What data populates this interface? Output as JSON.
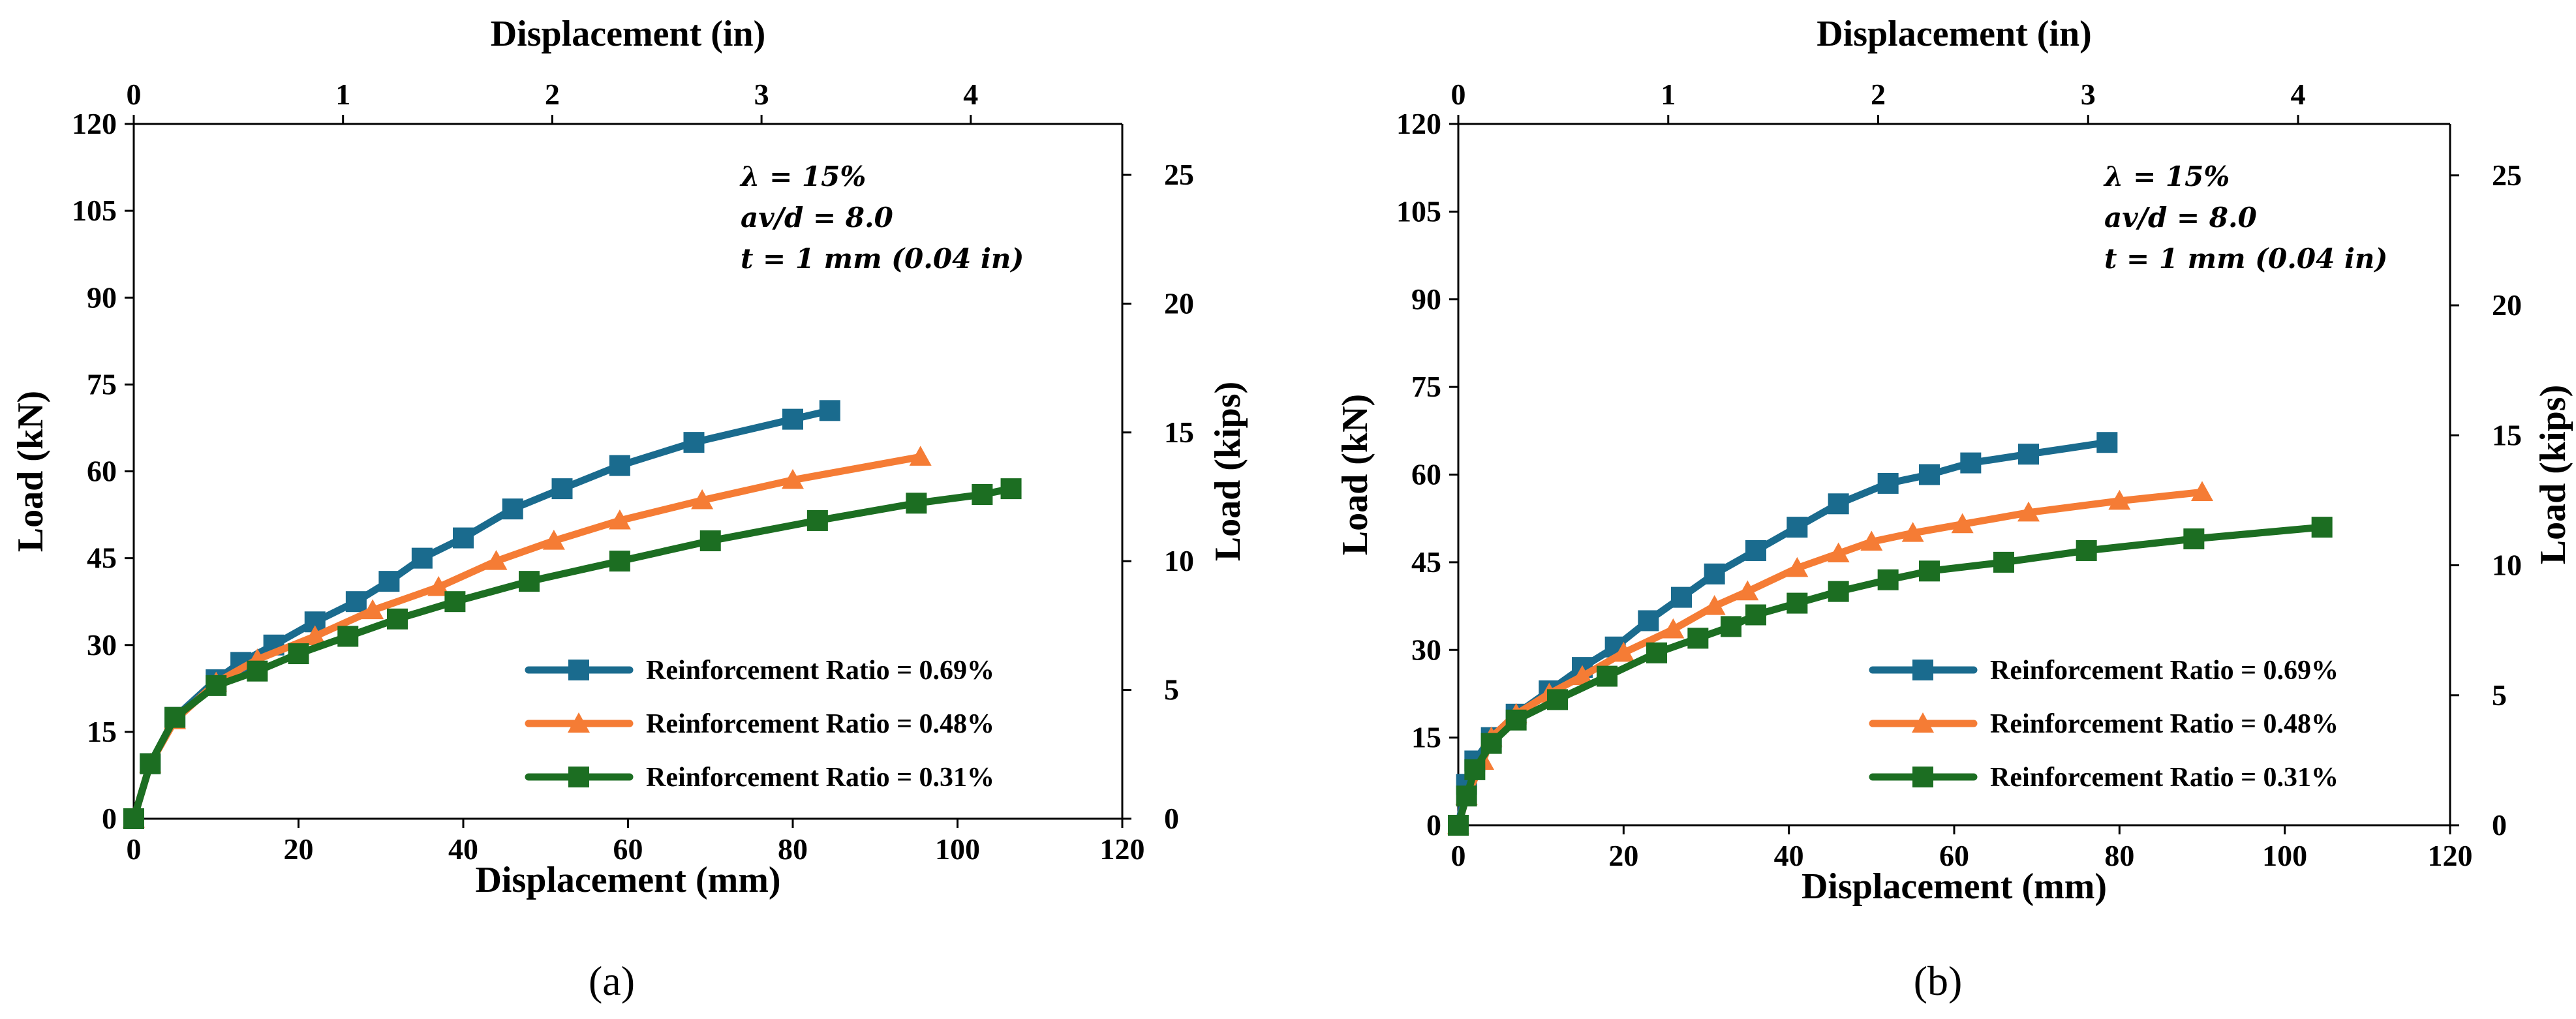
{
  "colors": {
    "blue": "#1a6b8e",
    "orange": "#f57c35",
    "green": "#1c6e22"
  },
  "chart_data": [
    {
      "type": "line",
      "panel_label": "(a)",
      "xlabel": "Displacement (mm)",
      "ylabel": "Load (kN)",
      "x2label": "Displacement (in)",
      "y2label": "Load (kips)",
      "xlim": [
        0,
        120
      ],
      "ylim": [
        0,
        120
      ],
      "x2lim": [
        0,
        4.724
      ],
      "y2lim": [
        0,
        26.977
      ],
      "xticks": [
        "0",
        "20",
        "40",
        "60",
        "80",
        "100",
        "120"
      ],
      "yticks": [
        "0",
        "15",
        "30",
        "45",
        "60",
        "75",
        "90",
        "105",
        "120"
      ],
      "x2ticks": [
        "0",
        "1",
        "2",
        "3",
        "4"
      ],
      "y2ticks": [
        "0",
        "5",
        "10",
        "15",
        "20",
        "25"
      ],
      "annotations": [
        "λ = 15%",
        "av/d = 8.0",
        "t = 1 mm (0.04 in)"
      ],
      "series": [
        {
          "name": "Reinforcement Ratio = 0.69%",
          "color": "#1a6b8e",
          "marker": "square",
          "x": [
            0,
            2,
            5,
            10,
            13,
            17,
            22,
            27,
            31,
            35,
            40,
            46,
            52,
            59,
            68,
            80,
            84.5
          ],
          "y": [
            0,
            9.5,
            17.5,
            24,
            27,
            30,
            34,
            37.5,
            41,
            45,
            48.5,
            53.5,
            57,
            61,
            65,
            69,
            70.5
          ]
        },
        {
          "name": "Reinforcement Ratio = 0.48%",
          "color": "#f57c35",
          "marker": "triangle",
          "x": [
            0,
            2,
            5,
            10,
            15,
            22,
            29,
            37,
            44,
            51,
            59,
            69,
            80,
            95.5
          ],
          "y": [
            0,
            9.5,
            17,
            23.5,
            27.5,
            31.5,
            36,
            40,
            44.5,
            48,
            51.5,
            55,
            58.5,
            62.5
          ]
        },
        {
          "name": "Reinforcement Ratio = 0.31%",
          "color": "#1c6e22",
          "marker": "square",
          "x": [
            0,
            2,
            5,
            10,
            15,
            20,
            26,
            32,
            39,
            48,
            59,
            70,
            83,
            95,
            103,
            106.5
          ],
          "y": [
            0,
            9.5,
            17.5,
            23,
            25.5,
            28.5,
            31.5,
            34.5,
            37.5,
            41,
            44.5,
            48,
            51.5,
            54.5,
            56,
            57
          ]
        }
      ]
    },
    {
      "type": "line",
      "panel_label": "(b)",
      "xlabel": "Displacement (mm)",
      "ylabel": "Load (kN)",
      "x2label": "Displacement (in)",
      "y2label": "Load (kips)",
      "xlim": [
        0,
        120
      ],
      "ylim": [
        0,
        120
      ],
      "x2lim": [
        0,
        4.724
      ],
      "y2lim": [
        0,
        26.977
      ],
      "xticks": [
        "0",
        "20",
        "40",
        "60",
        "80",
        "100",
        "120"
      ],
      "yticks": [
        "0",
        "15",
        "30",
        "45",
        "60",
        "75",
        "90",
        "105",
        "120"
      ],
      "x2ticks": [
        "0",
        "1",
        "2",
        "3",
        "4"
      ],
      "y2ticks": [
        "0",
        "5",
        "10",
        "15",
        "20",
        "25"
      ],
      "annotations": [
        "λ = 15%",
        "av/d = 8.0",
        "t = 1 mm (0.04 in)"
      ],
      "series": [
        {
          "name": "Reinforcement Ratio = 0.69%",
          "color": "#1a6b8e",
          "marker": "square",
          "x": [
            0,
            1,
            2,
            4,
            7,
            11,
            15,
            19,
            23,
            27,
            31,
            36,
            41,
            46,
            52,
            57,
            62,
            69,
            78.5
          ],
          "y": [
            0,
            7,
            11,
            15,
            19,
            23,
            27,
            30.5,
            35,
            39,
            43,
            47,
            51,
            55,
            58.5,
            60,
            62,
            63.5,
            65.5
          ]
        },
        {
          "name": "Reinforcement Ratio = 0.48%",
          "color": "#f57c35",
          "marker": "triangle",
          "x": [
            0,
            1,
            3,
            4,
            7,
            11,
            15,
            20,
            26,
            31,
            35,
            41,
            46,
            50,
            55,
            61,
            69,
            80,
            90
          ],
          "y": [
            0,
            5,
            11,
            15,
            19,
            22.5,
            25.5,
            29.5,
            33.5,
            37.5,
            40,
            44,
            46.5,
            48.5,
            50,
            51.5,
            53.5,
            55.5,
            57
          ]
        },
        {
          "name": "Reinforcement Ratio = 0.31%",
          "color": "#1c6e22",
          "marker": "square",
          "x": [
            0,
            1,
            2,
            4,
            7,
            12,
            18,
            24,
            29,
            33,
            36,
            41,
            46,
            52,
            57,
            66,
            76,
            89,
            104.5
          ],
          "y": [
            0,
            5,
            9.5,
            14,
            18,
            21.5,
            25.5,
            29.5,
            32,
            34,
            36,
            38,
            40,
            42,
            43.5,
            45,
            47,
            49,
            51
          ]
        }
      ]
    }
  ]
}
